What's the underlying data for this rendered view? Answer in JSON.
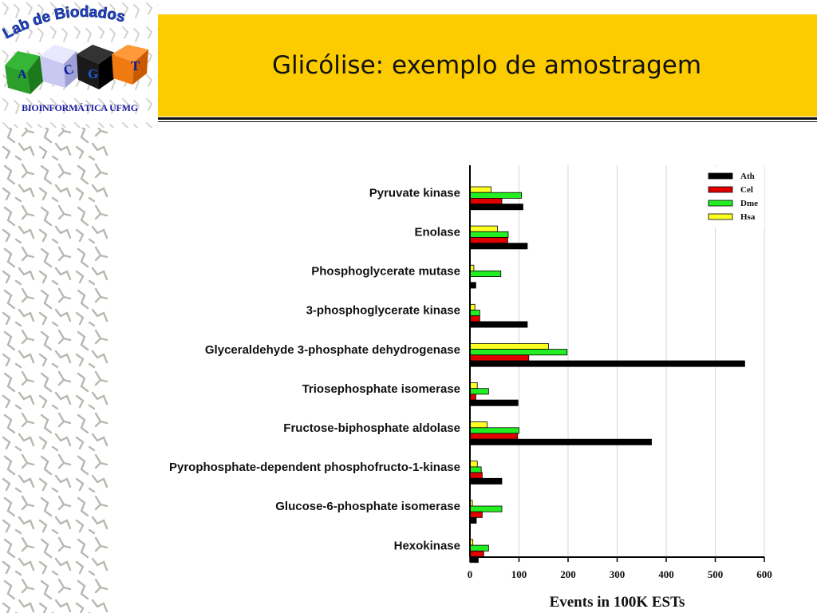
{
  "slide": {
    "title": "Glicólise: exemplo de amostragem",
    "logo": {
      "arc_text": "Lab de Biodados",
      "cubes": [
        "A",
        "C",
        "G",
        "T"
      ],
      "subtitle": "BIOINFORMÁTICA UFMG"
    }
  },
  "colors": {
    "header": "#fccc00",
    "Ath": "#000000",
    "Cel": "#e00000",
    "Dme": "#22ee22",
    "Hsa": "#ffff22"
  },
  "chart_data": {
    "type": "bar",
    "orientation": "horizontal",
    "categories": [
      "Pyruvate kinase",
      "Enolase",
      "Phosphoglycerate mutase",
      "3-phosphoglycerate kinase",
      "Glyceraldehyde 3-phosphate dehydrogenase",
      "Triosephosphate isomerase",
      "Fructose-biphosphate aldolase",
      "Pyrophosphate-dependent phosphofructo-1-kinase",
      "Glucose-6-phosphate isomerase",
      "Hexokinase"
    ],
    "series": [
      {
        "name": "Ath",
        "values": [
          108,
          117,
          12,
          117,
          560,
          98,
          370,
          65,
          13,
          17
        ]
      },
      {
        "name": "Cel",
        "values": [
          65,
          77,
          0,
          20,
          120,
          12,
          97,
          25,
          25,
          28
        ]
      },
      {
        "name": "Dme",
        "values": [
          105,
          78,
          63,
          20,
          198,
          38,
          100,
          23,
          65,
          38
        ]
      },
      {
        "name": "Hsa",
        "values": [
          43,
          56,
          8,
          10,
          160,
          15,
          35,
          15,
          5,
          6
        ]
      }
    ],
    "xlabel": "Events in 100K ESTs",
    "xlim": [
      0,
      600
    ],
    "xticks": [
      "0",
      "100",
      "200",
      "300",
      "400",
      "500",
      "600"
    ],
    "grid": true,
    "legend_position": "top-right"
  }
}
